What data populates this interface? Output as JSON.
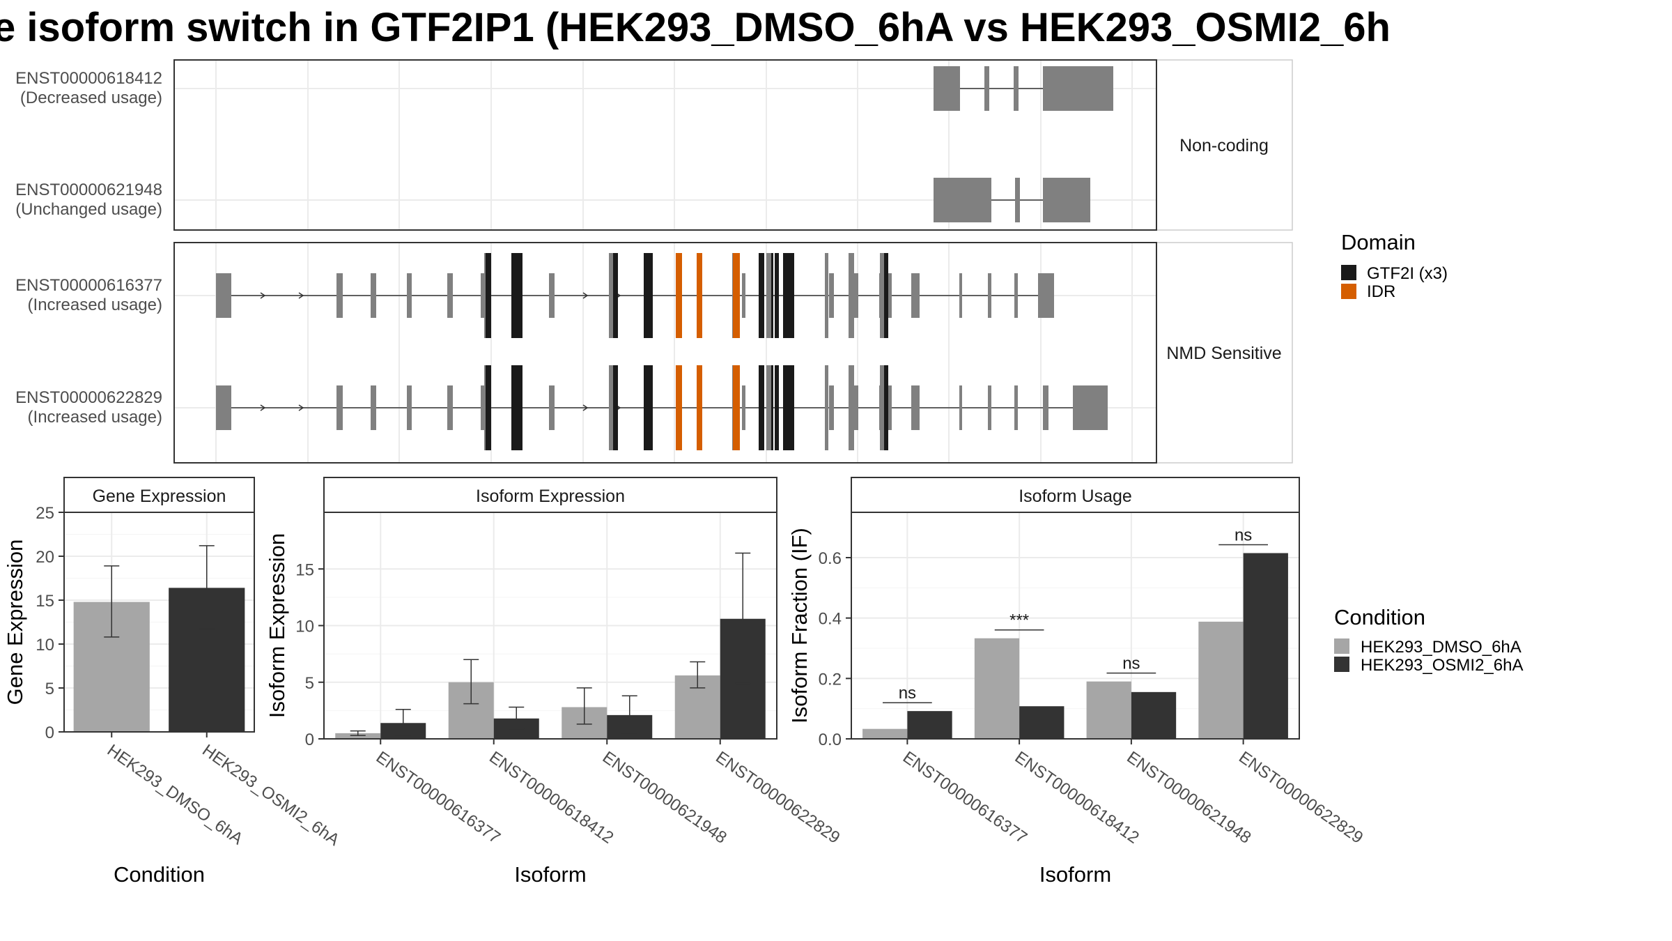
{
  "title": "e isoform switch in GTF2IP1 (HEK293_DMSO_6hA vs HEK293_OSMI2_6h",
  "colors": {
    "exon": "#808080",
    "gtf2i": "#1a1a1a",
    "idr": "#d55e00",
    "dmso": "#a6a6a6",
    "osmi2": "#333333",
    "grid": "#ebebeb",
    "strip_bg": "#ffffff"
  },
  "transcripts": {
    "rows": [
      {
        "id": "ENST00000618412",
        "usage": "(Decreased usage)"
      },
      {
        "id": "ENST00000621948",
        "usage": "(Unchanged usage)"
      },
      {
        "id": "ENST00000616377",
        "usage": "(Increased usage)"
      },
      {
        "id": "ENST00000622829",
        "usage": "(Increased usage)"
      }
    ],
    "facets": [
      "Non-coding",
      "NMD Sensitive"
    ]
  },
  "domain_legend": {
    "title": "Domain",
    "items": [
      {
        "label": "GTF2I (x3)",
        "color": "#1a1a1a"
      },
      {
        "label": "IDR",
        "color": "#d55e00"
      }
    ]
  },
  "condition_legend": {
    "title": "Condition",
    "items": [
      {
        "label": "HEK293_DMSO_6hA",
        "color": "#a6a6a6"
      },
      {
        "label": "HEK293_OSMI2_6hA",
        "color": "#333333"
      }
    ]
  },
  "chart_data": [
    {
      "type": "bar",
      "title": "Gene Expression",
      "xlabel": "Condition",
      "ylabel": "Gene Expression",
      "ylim": [
        0,
        25
      ],
      "yticks": [
        0,
        5,
        10,
        15,
        20,
        25
      ],
      "categories": [
        "HEK293_DMSO_6hA",
        "HEK293_OSMI2_6hA"
      ],
      "values": [
        14.8,
        16.4
      ],
      "err_low": [
        10.8,
        11.7
      ],
      "err_high": [
        18.9,
        21.2
      ]
    },
    {
      "type": "bar",
      "title": "Isoform Expression",
      "xlabel": "Isoform",
      "ylabel": "Isoform Expression",
      "ylim": [
        0,
        20
      ],
      "yticks": [
        0,
        5,
        10,
        15
      ],
      "categories": [
        "ENST00000616377",
        "ENST00000618412",
        "ENST00000621948",
        "ENST00000622829"
      ],
      "series": [
        {
          "name": "HEK293_DMSO_6hA",
          "values": [
            0.5,
            5.0,
            2.8,
            5.6
          ],
          "err_low": [
            0.3,
            3.1,
            1.3,
            4.5
          ],
          "err_high": [
            0.7,
            7.0,
            4.5,
            6.8
          ]
        },
        {
          "name": "HEK293_OSMI2_6hA",
          "values": [
            1.4,
            1.8,
            2.1,
            10.6
          ],
          "err_low": [
            0.3,
            0.9,
            0.5,
            4.9
          ],
          "err_high": [
            2.6,
            2.8,
            3.8,
            16.4
          ]
        }
      ]
    },
    {
      "type": "bar",
      "title": "Isoform Usage",
      "xlabel": "Isoform",
      "ylabel": "Isoform Fraction (IF)",
      "ylim": [
        0,
        0.75
      ],
      "yticks": [
        0.0,
        0.2,
        0.4,
        0.6
      ],
      "ytick_labels": [
        "0.0",
        "0.2",
        "0.4",
        "0.6"
      ],
      "categories": [
        "ENST00000616377",
        "ENST00000618412",
        "ENST00000621948",
        "ENST00000622829"
      ],
      "series": [
        {
          "name": "HEK293_DMSO_6hA",
          "values": [
            0.033,
            0.333,
            0.19,
            0.388
          ]
        },
        {
          "name": "HEK293_OSMI2_6hA",
          "values": [
            0.092,
            0.108,
            0.155,
            0.615
          ]
        }
      ],
      "significance": [
        "ns",
        "***",
        "ns",
        "ns"
      ]
    }
  ]
}
